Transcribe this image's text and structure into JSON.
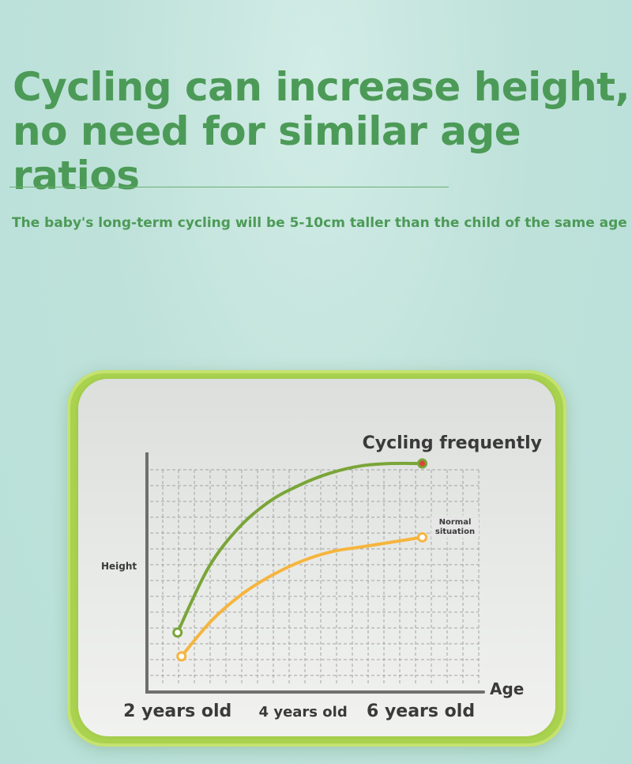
{
  "header": {
    "headline": "Cycling can increase height, no need for similar age ratios",
    "subline": "The baby's long-term cycling will be 5-10cm taller than the child of the same age"
  },
  "chart_data": {
    "type": "line",
    "title": "",
    "xlabel": "Age",
    "ylabel": "Height",
    "x_ticks": [
      {
        "label": "2 years old",
        "value": 2
      },
      {
        "label": "4 years old",
        "value": 4
      },
      {
        "label": "6 years old",
        "value": 6
      }
    ],
    "xlim": [
      1.5,
      7
    ],
    "ylim": [
      0,
      1
    ],
    "grid": true,
    "series": [
      {
        "name": "Cycling frequently",
        "color": "#7aa538",
        "x": [
          2,
          2.5,
          3,
          3.5,
          4,
          4.5,
          5,
          5.5,
          6
        ],
        "y": [
          0.25,
          0.52,
          0.69,
          0.8,
          0.87,
          0.92,
          0.95,
          0.96,
          0.96
        ]
      },
      {
        "name": "Normal situation",
        "color": "#f5b53e",
        "x": [
          2,
          2.5,
          3,
          3.5,
          4,
          4.5,
          5,
          5.5,
          6
        ],
        "y": [
          0.15,
          0.3,
          0.41,
          0.49,
          0.55,
          0.59,
          0.61,
          0.63,
          0.65
        ]
      }
    ],
    "colors": {
      "axis": "#6f6f6f",
      "grid": "#a3a3a3",
      "endpoint_dot": "#d9433a"
    }
  }
}
